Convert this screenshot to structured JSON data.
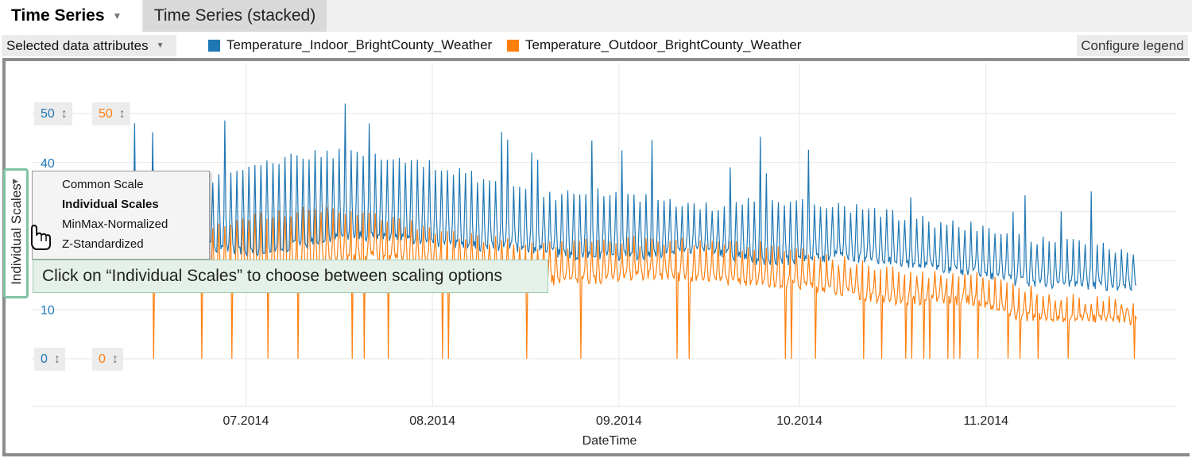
{
  "tabs": [
    {
      "label": "Time Series",
      "active": true
    },
    {
      "label": "Time Series (stacked)",
      "active": false
    }
  ],
  "legend": {
    "attributes_dropdown": "Selected data attributes",
    "configure_button": "Configure legend",
    "series": [
      {
        "name": "Temperature_Indoor_BrightCounty_Weather",
        "color": "#1f77b4"
      },
      {
        "name": "Temperature_Outdoor_BrightCounty_Weather",
        "color": "#ff7f0e"
      }
    ]
  },
  "scale_tags": {
    "indoor_max": "50",
    "outdoor_max": "50",
    "indoor_min": "0",
    "outdoor_min": "0"
  },
  "scale_menu": {
    "side_label": "Individual Scales",
    "items": [
      {
        "label": "Common Scale",
        "selected": false
      },
      {
        "label": "Individual Scales",
        "selected": true
      },
      {
        "label": "MinMax-Normalized",
        "selected": false
      },
      {
        "label": "Z-Standardized",
        "selected": false
      }
    ]
  },
  "callout": "Click on “Individual Scales” to choose between scaling options",
  "chart_data": {
    "type": "line",
    "xlabel": "DateTime",
    "x_ticks": [
      "07.2014",
      "08.2014",
      "09.2014",
      "10.2014",
      "11.2014"
    ],
    "y_ticks": [
      "10",
      "40"
    ],
    "ylim": [
      0,
      50
    ],
    "x_range": [
      "2014-06-04",
      "2014-11-26"
    ],
    "grid": true,
    "series": [
      {
        "name": "Temperature_Indoor_BrightCounty_Weather",
        "color": "#1f77b4",
        "weekly_x": [
          "2014-06-04",
          "2014-06-11",
          "2014-06-18",
          "2014-06-25",
          "2014-07-02",
          "2014-07-09",
          "2014-07-16",
          "2014-07-23",
          "2014-07-30",
          "2014-08-06",
          "2014-08-13",
          "2014-08-20",
          "2014-08-27",
          "2014-09-03",
          "2014-09-10",
          "2014-09-17",
          "2014-09-24",
          "2014-10-01",
          "2014-10-08",
          "2014-10-15",
          "2014-10-22",
          "2014-10-29",
          "2014-11-05",
          "2014-11-12",
          "2014-11-19",
          "2014-11-26"
        ],
        "daily_low": [
          24,
          24,
          24,
          23,
          22,
          23,
          25,
          25,
          24,
          23,
          23,
          22,
          21,
          21,
          22,
          22,
          20,
          20,
          21,
          20,
          19,
          18,
          16,
          15,
          15,
          15
        ],
        "daily_high": [
          34,
          36,
          37,
          36,
          40,
          41,
          42,
          41,
          40,
          38,
          35,
          33,
          34,
          33,
          32,
          31,
          33,
          32,
          31,
          30,
          28,
          27,
          25,
          24,
          23,
          22
        ]
      },
      {
        "name": "Temperature_Outdoor_BrightCounty_Weather",
        "color": "#ff7f0e",
        "weekly_x": [
          "2014-06-04",
          "2014-06-11",
          "2014-06-18",
          "2014-06-25",
          "2014-07-02",
          "2014-07-09",
          "2014-07-16",
          "2014-07-23",
          "2014-07-30",
          "2014-08-06",
          "2014-08-13",
          "2014-08-20",
          "2014-08-27",
          "2014-09-03",
          "2014-09-10",
          "2014-09-17",
          "2014-09-24",
          "2014-10-01",
          "2014-10-08",
          "2014-10-15",
          "2014-10-22",
          "2014-10-29",
          "2014-11-05",
          "2014-11-12",
          "2014-11-19",
          "2014-11-26"
        ],
        "daily_low": [
          15,
          16,
          17,
          16,
          18,
          18,
          20,
          21,
          20,
          18,
          17,
          16,
          16,
          17,
          17,
          16,
          16,
          15,
          14,
          12,
          12,
          12,
          9,
          8,
          8,
          8
        ],
        "daily_high": [
          24,
          26,
          27,
          27,
          29,
          30,
          30,
          29,
          27,
          25,
          24,
          23,
          24,
          24,
          24,
          23,
          23,
          22,
          20,
          18,
          17,
          17,
          15,
          13,
          12,
          11
        ]
      }
    ]
  }
}
